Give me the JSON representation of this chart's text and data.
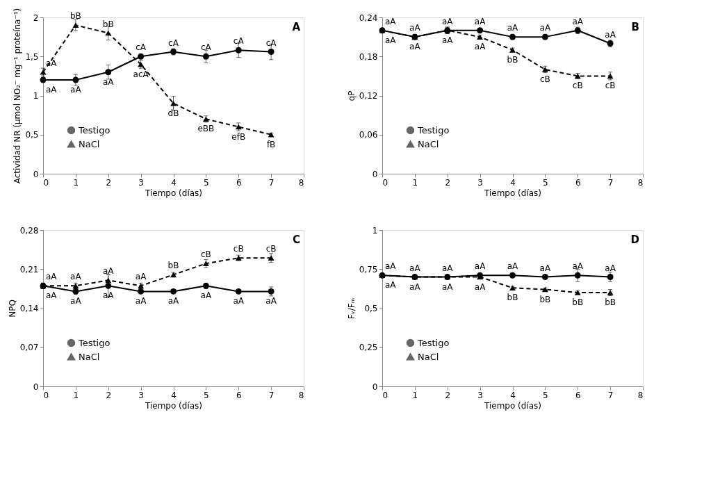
{
  "chart_data": [
    {
      "type": "line",
      "title": "A",
      "xlabel": "Tiempo (días)",
      "ylabel": "Actividad NR (µmol NO₂⁻ mg⁻¹ proteína⁻¹)",
      "x": [
        0,
        1,
        2,
        3,
        4,
        5,
        6,
        7
      ],
      "xlim": [
        0,
        8
      ],
      "xticks": [
        0,
        1,
        2,
        3,
        4,
        5,
        6,
        7,
        8
      ],
      "ylim": [
        0,
        2
      ],
      "yticks": [
        0,
        {
          "value": 0.5,
          "label": "0,5"
        },
        1,
        {
          "value": 1.5,
          "label": "1,5"
        },
        2
      ],
      "grid": false,
      "legend": "bottom left",
      "series": [
        {
          "name": "Testigo",
          "color": "#000000",
          "marker": "circle",
          "line_style": "solid",
          "values": [
            1.2,
            1.2,
            1.3,
            1.5,
            1.56,
            1.5,
            1.58,
            1.56
          ],
          "errors": [
            0.03,
            0.07,
            0.09,
            0.03,
            0.04,
            0.08,
            0.09,
            0.1
          ],
          "value_labels": [
            "aA",
            "aA",
            "aA",
            "cA",
            "cA",
            "cA",
            "cA",
            "cA"
          ]
        },
        {
          "name": "NaCl",
          "color": "#000000",
          "marker": "triangle",
          "line_style": "dashed",
          "values": [
            1.3,
            1.9,
            1.8,
            1.4,
            0.9,
            0.7,
            0.6,
            0.5
          ],
          "errors": [
            0.05,
            0.07,
            0.09,
            0.05,
            0.09,
            0.04,
            0.05,
            0.02
          ],
          "value_labels": [
            "aA",
            "bB",
            "bB",
            "acA",
            "dB",
            "eBB",
            "efB",
            "fB"
          ]
        }
      ]
    },
    {
      "type": "line",
      "title": "B",
      "xlabel": "Tiempo (días)",
      "ylabel": "qP",
      "x": [
        0,
        1,
        2,
        3,
        4,
        5,
        6,
        7
      ],
      "xlim": [
        0,
        8
      ],
      "xticks": [
        0,
        1,
        2,
        3,
        4,
        5,
        6,
        7,
        8
      ],
      "ylim": [
        0,
        0.24
      ],
      "yticks": [
        0,
        {
          "value": 0.06,
          "label": "0,06"
        },
        {
          "value": 0.12,
          "label": "0,12"
        },
        {
          "value": 0.18,
          "label": "0,18"
        },
        {
          "value": 0.24,
          "label": "0,24"
        }
      ],
      "grid": false,
      "legend": "bottom left",
      "series": [
        {
          "name": "Testigo",
          "color": "#000000",
          "marker": "circle",
          "line_style": "solid",
          "values": [
            0.22,
            0.21,
            0.22,
            0.22,
            0.21,
            0.21,
            0.22,
            0.2
          ],
          "errors": [
            0.003,
            0.004,
            0.005,
            0.003,
            0.004,
            0.004,
            0.005,
            0.005
          ],
          "value_labels": [
            "aA",
            "aA",
            "aA",
            "aA",
            "aA",
            "aA",
            "aA",
            "aA"
          ]
        },
        {
          "name": "NaCl",
          "color": "#000000",
          "marker": "triangle",
          "line_style": "dashed",
          "values": [
            0.22,
            0.21,
            0.22,
            0.21,
            0.19,
            0.16,
            0.15,
            0.15
          ],
          "errors": [
            0.003,
            0.004,
            0.005,
            0.003,
            0.003,
            0.005,
            0.004,
            0.006
          ],
          "value_labels": [
            "aA",
            "aA",
            "aA",
            "aA",
            "bB",
            "cB",
            "cB",
            "cB"
          ]
        }
      ]
    },
    {
      "type": "line",
      "title": "C",
      "xlabel": "Tiempo (días)",
      "ylabel": "NPQ",
      "x": [
        0,
        1,
        2,
        3,
        4,
        5,
        6,
        7
      ],
      "xlim": [
        0,
        8
      ],
      "xticks": [
        0,
        1,
        2,
        3,
        4,
        5,
        6,
        7,
        8
      ],
      "ylim": [
        0,
        0.28
      ],
      "yticks": [
        0,
        {
          "value": 0.07,
          "label": "0,07"
        },
        {
          "value": 0.14,
          "label": "0,14"
        },
        {
          "value": 0.21,
          "label": "0,21"
        },
        {
          "value": 0.28,
          "label": "0,28"
        }
      ],
      "grid": false,
      "legend": "bottom left",
      "series": [
        {
          "name": "Testigo",
          "color": "#000000",
          "marker": "circle",
          "line_style": "solid",
          "values": [
            0.18,
            0.17,
            0.18,
            0.17,
            0.17,
            0.18,
            0.17,
            0.17
          ],
          "errors": [
            0.005,
            0.005,
            0.02,
            0.003,
            0.003,
            0.005,
            0.003,
            0.008
          ],
          "value_labels": [
            "aA",
            "aA",
            "aA",
            "aA",
            "aA",
            "aA",
            "aA",
            "aA"
          ]
        },
        {
          "name": "NaCl",
          "color": "#000000",
          "marker": "triangle",
          "line_style": "dashed",
          "values": [
            0.18,
            0.18,
            0.19,
            0.18,
            0.2,
            0.22,
            0.23,
            0.23
          ],
          "errors": [
            0.005,
            0.005,
            0.01,
            0.005,
            0.004,
            0.007,
            0.005,
            0.008
          ],
          "value_labels": [
            "aA",
            "aA",
            "aA",
            "aA",
            "bB",
            "cB",
            "cB",
            "cB"
          ]
        }
      ]
    },
    {
      "type": "line",
      "title": "D",
      "xlabel": "Tiempo (días)",
      "ylabel": "Fᵥ/Fₘ",
      "x": [
        0,
        1,
        2,
        3,
        4,
        5,
        6,
        7
      ],
      "xlim": [
        0,
        8
      ],
      "xticks": [
        0,
        1,
        2,
        3,
        4,
        5,
        6,
        7,
        8
      ],
      "ylim": [
        0,
        1
      ],
      "yticks": [
        0,
        {
          "value": 0.25,
          "label": "0,25"
        },
        {
          "value": 0.5,
          "label": "0,5"
        },
        {
          "value": 0.75,
          "label": "0,75"
        },
        1
      ],
      "grid": false,
      "legend": "bottom left",
      "series": [
        {
          "name": "Testigo",
          "color": "#000000",
          "marker": "circle",
          "line_style": "solid",
          "values": [
            0.71,
            0.7,
            0.7,
            0.71,
            0.71,
            0.7,
            0.71,
            0.7
          ],
          "errors": [
            0.01,
            0.01,
            0.01,
            0.01,
            0.01,
            0.01,
            0.04,
            0.03
          ],
          "value_labels": [
            "aA",
            "aA",
            "aA",
            "aA",
            "aA",
            "aA",
            "aA",
            "aA"
          ]
        },
        {
          "name": "NaCl",
          "color": "#000000",
          "marker": "triangle",
          "line_style": "dashed",
          "values": [
            0.71,
            0.7,
            0.7,
            0.7,
            0.63,
            0.62,
            0.6,
            0.6
          ],
          "errors": [
            0.01,
            0.01,
            0.01,
            0.01,
            0.01,
            0.01,
            0.01,
            0.02
          ],
          "value_labels": [
            "aA",
            "aA",
            "aA",
            "aA",
            "bB",
            "bB",
            "bB",
            "bB"
          ]
        }
      ]
    }
  ]
}
